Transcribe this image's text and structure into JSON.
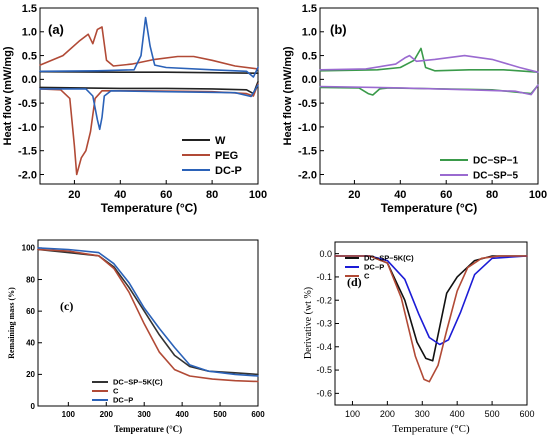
{
  "chart_data": [
    {
      "id": "a",
      "panel_label": "(a)",
      "type": "line",
      "xlabel": "Temperature (°C)",
      "ylabel": "Heat flow (mW/mg)",
      "xlim": [
        5,
        100
      ],
      "ylim": [
        -2.2,
        1.5
      ],
      "xticks": [
        20,
        40,
        60,
        80,
        100
      ],
      "yticks": [
        -2.0,
        -1.5,
        -1.0,
        -0.5,
        0.0,
        0.5,
        1.0,
        1.5
      ],
      "tick_labels_x": [
        "20",
        "40",
        "60",
        "80",
        "100"
      ],
      "tick_labels_y": [
        "-2.0",
        "-1.5",
        "-1.0",
        "-0.5",
        "0.0",
        "0.5",
        "1.0",
        "1.5"
      ],
      "legend_position": "bottom-right",
      "series": [
        {
          "name": "W",
          "color": "#222222",
          "segments": [
            [
              [
                5,
                0.16
              ],
              [
                40,
                0.15
              ],
              [
                60,
                0.15
              ],
              [
                80,
                0.14
              ],
              [
                100,
                0.13
              ]
            ],
            [
              [
                5,
                -0.17
              ],
              [
                40,
                -0.19
              ],
              [
                60,
                -0.19
              ],
              [
                80,
                -0.2
              ],
              [
                95,
                -0.22
              ],
              [
                98,
                -0.3
              ],
              [
                100,
                -0.05
              ]
            ]
          ]
        },
        {
          "name": "PEG",
          "color": "#b14a36",
          "segments": [
            [
              [
                5,
                0.3
              ],
              [
                15,
                0.5
              ],
              [
                22,
                0.8
              ],
              [
                26,
                0.95
              ],
              [
                28,
                0.75
              ],
              [
                30,
                1.05
              ],
              [
                32,
                1.1
              ],
              [
                34,
                0.4
              ],
              [
                37,
                0.28
              ],
              [
                45,
                0.32
              ],
              [
                55,
                0.42
              ],
              [
                65,
                0.48
              ],
              [
                72,
                0.48
              ],
              [
                80,
                0.4
              ],
              [
                90,
                0.28
              ],
              [
                100,
                0.22
              ]
            ],
            [
              [
                5,
                -0.2
              ],
              [
                14,
                -0.22
              ],
              [
                18,
                -0.4
              ],
              [
                20,
                -1.4
              ],
              [
                21,
                -2.0
              ],
              [
                23,
                -1.65
              ],
              [
                25,
                -1.5
              ],
              [
                27,
                -1.1
              ],
              [
                29,
                -0.4
              ],
              [
                32,
                -0.24
              ],
              [
                50,
                -0.24
              ],
              [
                80,
                -0.26
              ],
              [
                95,
                -0.3
              ],
              [
                98,
                -0.35
              ],
              [
                100,
                -0.1
              ]
            ]
          ]
        },
        {
          "name": "DC-P",
          "color": "#2b62b8",
          "segments": [
            [
              [
                5,
                0.17
              ],
              [
                30,
                0.18
              ],
              [
                46,
                0.2
              ],
              [
                49,
                0.5
              ],
              [
                51,
                1.3
              ],
              [
                53,
                0.7
              ],
              [
                55,
                0.3
              ],
              [
                60,
                0.25
              ],
              [
                80,
                0.2
              ],
              [
                95,
                0.17
              ],
              [
                98,
                0.05
              ],
              [
                100,
                0.25
              ]
            ],
            [
              [
                5,
                -0.2
              ],
              [
                25,
                -0.2
              ],
              [
                28,
                -0.35
              ],
              [
                30,
                -0.85
              ],
              [
                31,
                -1.05
              ],
              [
                32,
                -0.8
              ],
              [
                33,
                -0.35
              ],
              [
                36,
                -0.24
              ],
              [
                60,
                -0.26
              ],
              [
                90,
                -0.28
              ],
              [
                97,
                -0.36
              ],
              [
                100,
                -0.12
              ]
            ]
          ]
        }
      ]
    },
    {
      "id": "b",
      "panel_label": "(b)",
      "type": "line",
      "xlabel": "Temperature (°C)",
      "ylabel": "Heat flow (mW/mg)",
      "xlim": [
        5,
        100
      ],
      "ylim": [
        -2.2,
        1.5
      ],
      "xticks": [
        20,
        40,
        60,
        80,
        100
      ],
      "yticks": [
        -2.0,
        -1.5,
        -1.0,
        -0.5,
        0.0,
        0.5,
        1.0,
        1.5
      ],
      "tick_labels_x": [
        "20",
        "40",
        "60",
        "80",
        "100"
      ],
      "tick_labels_y": [
        "-2.0",
        "-1.5",
        "-1.0",
        "-0.5",
        "0.0",
        "0.5",
        "1.0",
        "1.5"
      ],
      "legend_position": "bottom-right",
      "series": [
        {
          "name": "DC−SP−1",
          "color": "#3a9a4a",
          "segments": [
            [
              [
                5,
                0.18
              ],
              [
                30,
                0.2
              ],
              [
                40,
                0.25
              ],
              [
                46,
                0.4
              ],
              [
                49,
                0.65
              ],
              [
                51,
                0.25
              ],
              [
                55,
                0.18
              ],
              [
                70,
                0.2
              ],
              [
                85,
                0.2
              ],
              [
                100,
                0.15
              ]
            ],
            [
              [
                5,
                -0.17
              ],
              [
                22,
                -0.18
              ],
              [
                26,
                -0.3
              ],
              [
                28,
                -0.33
              ],
              [
                31,
                -0.2
              ],
              [
                35,
                -0.18
              ],
              [
                80,
                -0.22
              ],
              [
                97,
                -0.3
              ],
              [
                100,
                -0.12
              ]
            ]
          ]
        },
        {
          "name": "DC−SP−5",
          "color": "#9a6ad0",
          "segments": [
            [
              [
                5,
                0.2
              ],
              [
                25,
                0.22
              ],
              [
                38,
                0.32
              ],
              [
                42,
                0.45
              ],
              [
                44,
                0.5
              ],
              [
                47,
                0.38
              ],
              [
                55,
                0.42
              ],
              [
                68,
                0.5
              ],
              [
                80,
                0.42
              ],
              [
                92,
                0.25
              ],
              [
                100,
                0.15
              ]
            ],
            [
              [
                5,
                -0.15
              ],
              [
                40,
                -0.18
              ],
              [
                70,
                -0.22
              ],
              [
                90,
                -0.25
              ],
              [
                97,
                -0.32
              ],
              [
                100,
                -0.12
              ]
            ]
          ]
        }
      ]
    },
    {
      "id": "c",
      "panel_label": "(c)",
      "type": "line",
      "xlabel": "Temperature (°C)",
      "ylabel": "Remaining mass (%)",
      "xlim": [
        20,
        600
      ],
      "ylim": [
        0,
        105
      ],
      "xticks": [
        100,
        200,
        300,
        400,
        500,
        600
      ],
      "yticks": [
        0,
        20,
        40,
        60,
        80,
        100
      ],
      "tick_labels_x": [
        "100",
        "200",
        "300",
        "400",
        "500",
        "600"
      ],
      "tick_labels_y": [
        "0",
        "20",
        "40",
        "60",
        "80",
        "100"
      ],
      "legend_position": "bottom-left",
      "series": [
        {
          "name": "DC−SP−5K(C)",
          "color": "#333333",
          "segments": [
            [
              [
                20,
                99
              ],
              [
                100,
                97
              ],
              [
                180,
                95
              ],
              [
                220,
                88
              ],
              [
                260,
                75
              ],
              [
                300,
                60
              ],
              [
                340,
                45
              ],
              [
                380,
                32
              ],
              [
                420,
                25
              ],
              [
                470,
                22
              ],
              [
                540,
                21
              ],
              [
                600,
                20
              ]
            ]
          ]
        },
        {
          "name": "C",
          "color": "#b14a36",
          "segments": [
            [
              [
                20,
                99
              ],
              [
                100,
                98
              ],
              [
                180,
                95
              ],
              [
                220,
                87
              ],
              [
                260,
                72
              ],
              [
                300,
                52
              ],
              [
                340,
                34
              ],
              [
                380,
                23
              ],
              [
                420,
                19
              ],
              [
                480,
                17
              ],
              [
                540,
                16
              ],
              [
                600,
                15.5
              ]
            ]
          ]
        },
        {
          "name": "DC−P",
          "color": "#2b62b8",
          "segments": [
            [
              [
                20,
                100
              ],
              [
                100,
                99
              ],
              [
                180,
                97
              ],
              [
                220,
                90
              ],
              [
                260,
                78
              ],
              [
                300,
                62
              ],
              [
                340,
                49
              ],
              [
                380,
                37
              ],
              [
                420,
                26
              ],
              [
                470,
                22
              ],
              [
                540,
                20
              ],
              [
                600,
                19
              ]
            ]
          ]
        }
      ]
    },
    {
      "id": "d",
      "panel_label": "(d)",
      "type": "line",
      "xlabel": "Temperature (°C)",
      "ylabel": "Derivative (wt %)",
      "xlim": [
        50,
        600
      ],
      "ylim": [
        -0.65,
        0.05
      ],
      "xticks": [
        100,
        200,
        300,
        400,
        500,
        600
      ],
      "yticks": [
        0.0,
        -0.1,
        -0.2,
        -0.3,
        -0.4,
        -0.5,
        -0.6
      ],
      "tick_labels_x": [
        "100",
        "200",
        "300",
        "400",
        "500",
        "600"
      ],
      "tick_labels_y": [
        "0.0",
        "-0.1",
        "-0.2",
        "-0.3",
        "-0.4",
        "-0.5",
        "-0.6"
      ],
      "legend_position": "top-left",
      "series": [
        {
          "name": "DC−SP−5K(C)",
          "color": "#111111",
          "segments": [
            [
              [
                50,
                -0.01
              ],
              [
                150,
                -0.01
              ],
              [
                200,
                -0.04
              ],
              [
                250,
                -0.2
              ],
              [
                285,
                -0.38
              ],
              [
                310,
                -0.45
              ],
              [
                330,
                -0.46
              ],
              [
                345,
                -0.35
              ],
              [
                370,
                -0.17
              ],
              [
                400,
                -0.1
              ],
              [
                450,
                -0.03
              ],
              [
                500,
                -0.01
              ],
              [
                600,
                -0.01
              ]
            ]
          ]
        },
        {
          "name": "DC−P",
          "color": "#1c1cd6",
          "segments": [
            [
              [
                50,
                -0.01
              ],
              [
                150,
                -0.01
              ],
              [
                200,
                -0.03
              ],
              [
                250,
                -0.11
              ],
              [
                290,
                -0.26
              ],
              [
                320,
                -0.36
              ],
              [
                350,
                -0.39
              ],
              [
                375,
                -0.37
              ],
              [
                410,
                -0.25
              ],
              [
                450,
                -0.09
              ],
              [
                500,
                -0.02
              ],
              [
                600,
                -0.01
              ]
            ]
          ]
        },
        {
          "name": "C",
          "color": "#b14a36",
          "segments": [
            [
              [
                50,
                -0.01
              ],
              [
                150,
                -0.01
              ],
              [
                200,
                -0.04
              ],
              [
                240,
                -0.19
              ],
              [
                280,
                -0.44
              ],
              [
                305,
                -0.54
              ],
              [
                320,
                -0.55
              ],
              [
                345,
                -0.48
              ],
              [
                370,
                -0.33
              ],
              [
                400,
                -0.16
              ],
              [
                430,
                -0.06
              ],
              [
                470,
                -0.02
              ],
              [
                520,
                -0.01
              ],
              [
                600,
                -0.01
              ]
            ]
          ]
        }
      ]
    }
  ]
}
